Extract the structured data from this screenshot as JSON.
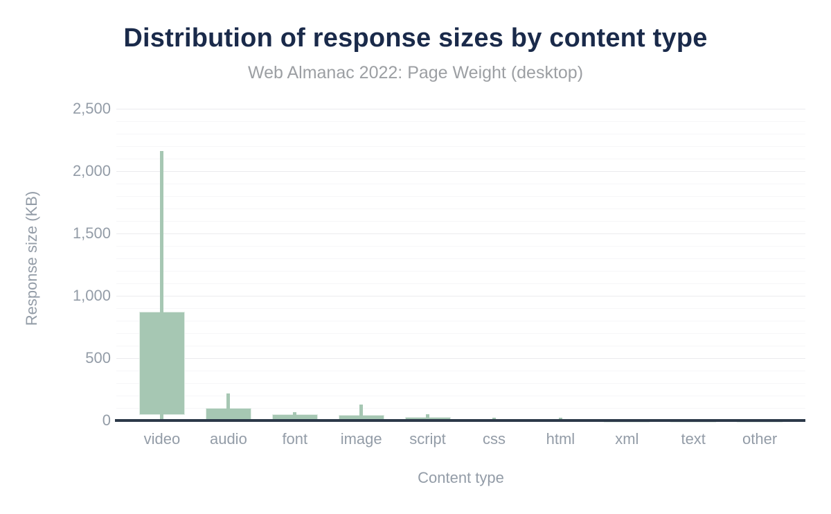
{
  "chart_data": {
    "type": "boxplot",
    "title": "Distribution of response sizes by content type",
    "subtitle": "Web Almanac 2022: Page Weight (desktop)",
    "xlabel": "Content type",
    "ylabel": "Response size (KB)",
    "ylim": [
      0,
      2600
    ],
    "y_major_ticks": [
      0,
      500,
      1000,
      1500,
      2000,
      2500
    ],
    "y_minor_step": 100,
    "grid": "on",
    "legend": "none",
    "categories": [
      "video",
      "audio",
      "font",
      "image",
      "script",
      "css",
      "html",
      "xml",
      "text",
      "other"
    ],
    "boxes": [
      {
        "category": "video",
        "low": 2,
        "q1": 45,
        "q3": 872,
        "high": 2160
      },
      {
        "category": "audio",
        "low": 1,
        "q1": 2,
        "q3": 100,
        "high": 217
      },
      {
        "category": "font",
        "low": 1,
        "q1": 2,
        "q3": 50,
        "high": 66
      },
      {
        "category": "image",
        "low": 1,
        "q1": 2,
        "q3": 44,
        "high": 127
      },
      {
        "category": "script",
        "low": 1,
        "q1": 2,
        "q3": 27,
        "high": 51
      },
      {
        "category": "css",
        "low": 0.5,
        "q1": 1,
        "q3": 14,
        "high": 25
      },
      {
        "category": "html",
        "low": 0.5,
        "q1": 1,
        "q3": 14,
        "high": 21
      },
      {
        "category": "xml",
        "low": 0.5,
        "q1": 1,
        "q3": 8,
        "high": 10
      },
      {
        "category": "text",
        "low": 0.5,
        "q1": 1,
        "q3": 7,
        "high": 9
      },
      {
        "category": "other",
        "low": 0.5,
        "q1": 1,
        "q3": 7,
        "high": 9
      }
    ],
    "colors": {
      "background": "#ffffff",
      "box_fill": "#a6c7b3",
      "box_border": "#e2ede6",
      "axis_line": "#2c3949",
      "title": "#1a2a4a",
      "subtitle": "#9c9fa3",
      "tick_label": "#939ca7",
      "grid_major": "#ebebee",
      "grid_minor": "#f6f6f8"
    }
  }
}
